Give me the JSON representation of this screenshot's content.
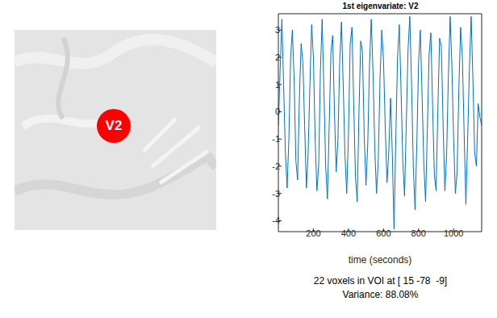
{
  "chart_data": {
    "type": "line",
    "title": "1st eigenvariate: V2",
    "x_label": "time (seconds)",
    "annotations": [
      "V2",
      "22 voxels in VOI at [ 15 -78  -9]",
      "Variance: 88.08%"
    ],
    "color": "#0072bd",
    "xlim": [
      0,
      1160
    ],
    "xticks": [
      200,
      400,
      600,
      800,
      1000
    ],
    "ylim": [
      -4.4,
      3.6
    ],
    "yticks": [
      -4,
      -3,
      -2,
      -1,
      0,
      1,
      2,
      3
    ],
    "grid": false,
    "x": [
      0,
      10,
      20,
      30,
      40,
      50,
      60,
      70,
      80,
      90,
      100,
      110,
      120,
      130,
      140,
      150,
      160,
      170,
      180,
      190,
      200,
      210,
      220,
      230,
      240,
      250,
      260,
      270,
      280,
      290,
      300,
      310,
      320,
      330,
      340,
      350,
      360,
      370,
      380,
      390,
      400,
      410,
      420,
      430,
      440,
      450,
      460,
      470,
      480,
      490,
      500,
      510,
      520,
      530,
      540,
      550,
      560,
      570,
      580,
      590,
      600,
      610,
      620,
      630,
      640,
      650,
      660,
      670,
      680,
      690,
      700,
      710,
      720,
      730,
      740,
      750,
      760,
      770,
      780,
      790,
      800,
      810,
      820,
      830,
      840,
      850,
      860,
      870,
      880,
      890,
      900,
      910,
      920,
      930,
      940,
      950,
      960,
      970,
      980,
      990,
      1000,
      1010,
      1020,
      1030,
      1040,
      1050,
      1060,
      1070,
      1080,
      1090,
      1100,
      1110,
      1120,
      1130,
      1140,
      1150,
      1160
    ],
    "values": [
      -0.5,
      1.5,
      3.4,
      1.0,
      -1.5,
      -2.8,
      -1.0,
      2.0,
      3.0,
      1.2,
      -1.8,
      -2.5,
      0.5,
      2.5,
      1.8,
      -0.5,
      -2.8,
      -1.5,
      1.0,
      3.2,
      2.0,
      -1.0,
      -2.9,
      -2.0,
      1.5,
      3.4,
      0.8,
      -2.0,
      -3.2,
      -0.5,
      2.2,
      2.8,
      0.0,
      -2.2,
      -1.0,
      1.8,
      3.3,
      1.0,
      -1.6,
      -3.0,
      -0.8,
      2.5,
      3.1,
      0.3,
      -2.4,
      -3.3,
      0.0,
      2.6,
      2.2,
      -0.9,
      -2.7,
      -1.2,
      1.7,
      3.4,
      1.5,
      -1.3,
      -3.0,
      -1.8,
      1.2,
      3.0,
      1.9,
      -0.6,
      -2.6,
      -1.5,
      0.5,
      -1.5,
      -4.3,
      -1.0,
      2.0,
      3.2,
      0.8,
      -1.8,
      -3.1,
      -0.4,
      2.3,
      3.5,
      1.0,
      -2.0,
      -3.6,
      -1.2,
      1.8,
      3.0,
      0.6,
      -1.9,
      -3.3,
      -0.7,
      2.1,
      2.9,
      0.2,
      -2.3,
      -2.9,
      0.1,
      2.7,
      2.4,
      -0.5,
      -2.9,
      -1.6,
      1.3,
      3.5,
      1.7,
      -1.0,
      -3.0,
      -2.2,
      0.9,
      3.1,
      2.0,
      -0.8,
      -3.4,
      -1.0,
      1.6,
      3.5,
      1.2,
      -1.5,
      -2.0,
      0.3,
      -0.2,
      -0.5
    ]
  }
}
